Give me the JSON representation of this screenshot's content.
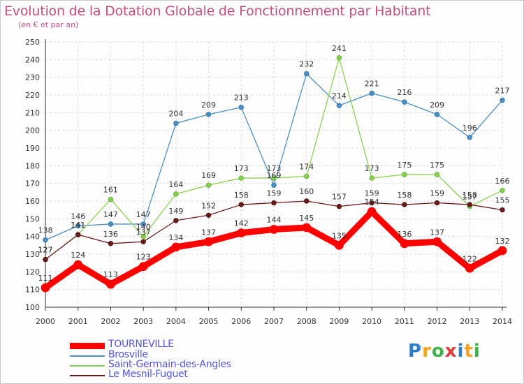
{
  "header": {
    "title": "Evolution de la Dotation Globale de Fonctionnement par Habitant",
    "subtitle": "(en € et par an)"
  },
  "logo": {
    "letters": [
      "P",
      "r",
      "o",
      "x",
      "i",
      "t",
      "i"
    ],
    "colors": [
      "#2f7ec9",
      "#f7a21b",
      "#3fb14a",
      "#e23b3b",
      "#2f7ec9",
      "#f7a21b",
      "#3fb14a"
    ]
  },
  "chart_data": {
    "type": "line",
    "title": "Evolution de la Dotation Globale de Fonctionnement par Habitant",
    "subtitle": "(en € et par an)",
    "xlabel": "",
    "ylabel": "",
    "x": [
      "2000",
      "2001",
      "2002",
      "2003",
      "2004",
      "2005",
      "2006",
      "2007",
      "2008",
      "2009",
      "2010",
      "2011",
      "2012",
      "2013",
      "2014"
    ],
    "ylim": [
      100,
      250
    ],
    "yticks": [
      "100",
      "110",
      "120",
      "130",
      "140",
      "150",
      "160",
      "170",
      "180",
      "190",
      "200",
      "210",
      "220",
      "230",
      "240",
      "250"
    ],
    "grid": true,
    "legend_position": "bottom-left",
    "series": [
      {
        "name": "TOURNEVILLE",
        "color": "#ff0000",
        "values": [
          111,
          124,
          113,
          123,
          134,
          137,
          142,
          144,
          145,
          135,
          154,
          136,
          137,
          122,
          132
        ]
      },
      {
        "name": "Brosville",
        "color": "#4a90c4",
        "values": [
          138,
          146,
          147,
          147,
          204,
          209,
          213,
          169,
          232,
          214,
          221,
          216,
          209,
          196,
          217
        ]
      },
      {
        "name": "Saint-Germain-des-Angles",
        "color": "#88d44e",
        "values": [
          127,
          141,
          161,
          140,
          164,
          169,
          173,
          173,
          174,
          241,
          173,
          175,
          175,
          157,
          166
        ]
      },
      {
        "name": "Le Mesnil-Fuguet",
        "color": "#6b1a1a",
        "values": [
          127,
          141,
          136,
          137,
          149,
          152,
          158,
          159,
          160,
          157,
          159,
          158,
          159,
          158,
          155
        ]
      }
    ]
  }
}
